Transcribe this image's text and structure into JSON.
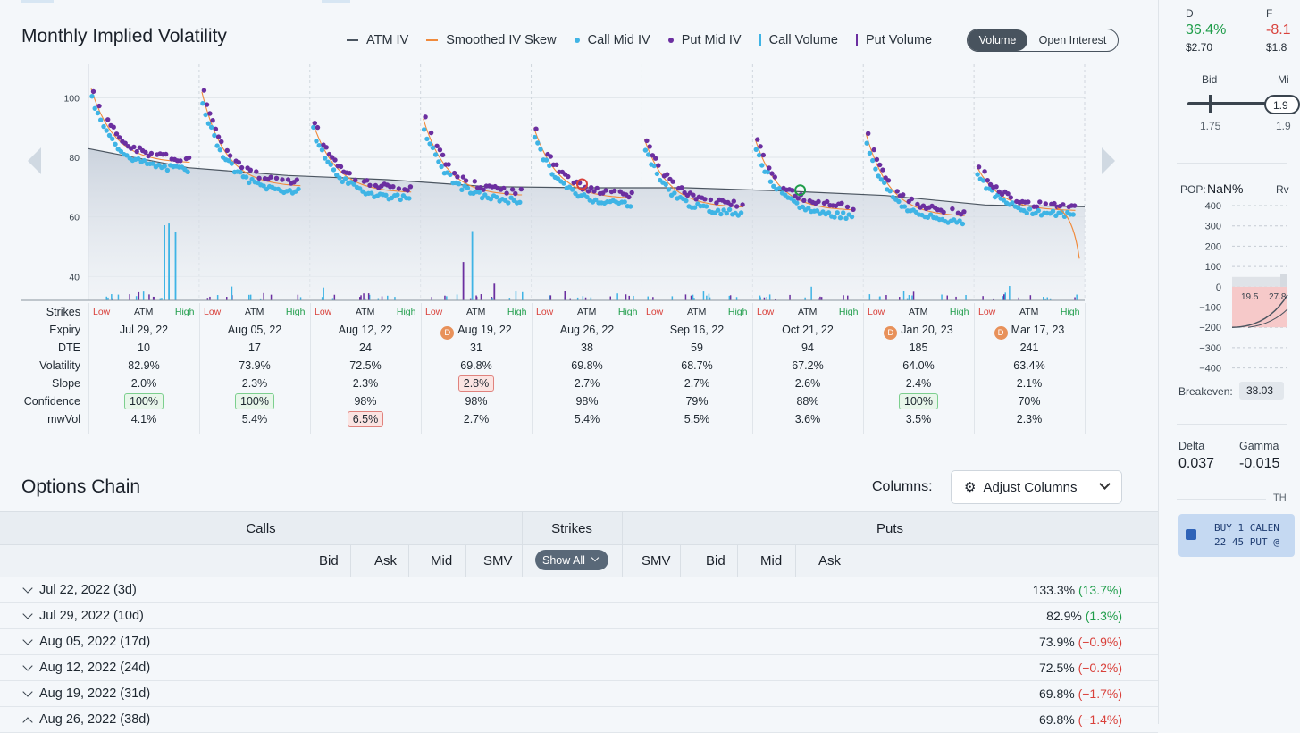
{
  "iv_title": "Monthly Implied Volatility",
  "legend": [
    {
      "label": "ATM IV",
      "kind": "line",
      "color": "#4b5560"
    },
    {
      "label": "Smoothed IV Skew",
      "kind": "line",
      "color": "#f08a3c"
    },
    {
      "label": "Call Mid IV",
      "kind": "dot",
      "color": "#3fb4e5"
    },
    {
      "label": "Put Mid IV",
      "kind": "dot",
      "color": "#6b2fa0"
    },
    {
      "label": "Call Volume",
      "kind": "bar",
      "color": "#3fb4e5"
    },
    {
      "label": "Put Volume",
      "kind": "bar",
      "color": "#6b2fa0"
    }
  ],
  "toggle": {
    "volume": "Volume",
    "open_interest": "Open Interest",
    "selected": "Volume"
  },
  "chart_data": {
    "type": "scatter",
    "y_ticks": [
      40,
      60,
      80,
      100
    ],
    "ylim": [
      32,
      110
    ],
    "atm_iv_curve": [
      82.9,
      76.5,
      73.9,
      72.5,
      70.2,
      69.8,
      69.8,
      68.7,
      67.2,
      64.0,
      63.4
    ],
    "expiries": [
      {
        "iv_start": 103,
        "iv_end": 78,
        "call_offset": -2.5
      },
      {
        "iv_start": 102,
        "iv_end": 70,
        "call_offset": -2
      },
      {
        "iv_start": 92,
        "iv_end": 68,
        "call_offset": -2
      },
      {
        "iv_start": 93,
        "iv_end": 67,
        "call_offset": -2
      },
      {
        "iv_start": 90,
        "iv_end": 66,
        "call_offset": -2
      },
      {
        "iv_start": 86,
        "iv_end": 63,
        "call_offset": -2
      },
      {
        "iv_start": 86,
        "iv_end": 62,
        "call_offset": -2
      },
      {
        "iv_start": 88,
        "iv_end": 60,
        "call_offset": -2
      },
      {
        "iv_start": 77,
        "iv_end": 62,
        "call_offset": -1.5
      }
    ],
    "volume_spikes": [
      {
        "expiry": 0,
        "pos": 0.68,
        "height": 0.9,
        "kind": "call"
      },
      {
        "expiry": 0,
        "pos": 0.72,
        "height": 0.92,
        "kind": "call"
      },
      {
        "expiry": 0,
        "pos": 0.78,
        "height": 0.82,
        "kind": "call"
      },
      {
        "expiry": 3,
        "pos": 0.38,
        "height": 0.46,
        "kind": "put"
      },
      {
        "expiry": 3,
        "pos": 0.46,
        "height": 0.83,
        "kind": "call"
      },
      {
        "expiry": 3,
        "pos": 0.66,
        "height": 0.2,
        "kind": "put"
      }
    ],
    "markers": [
      {
        "expiry": 4,
        "pos": 0.46,
        "iv": 71,
        "color": "#d9413b"
      },
      {
        "expiry": 6,
        "pos": 0.43,
        "iv": 69,
        "color": "#1f9d4a"
      }
    ],
    "extrapolated_tail": {
      "from_iv": 63,
      "to_iv": 46
    }
  },
  "stats": {
    "row_labels": [
      "Strikes",
      "Expiry",
      "DTE",
      "Volatility",
      "Slope",
      "Confidence",
      "mwVol"
    ],
    "strike_labels": {
      "low": "Low",
      "atm": "ATM",
      "high": "High"
    },
    "columns": [
      {
        "expiry": "Jul 29, 22",
        "dte": "10",
        "vol": "82.9%",
        "slope": "2.0%",
        "conf": "100%",
        "mw": "4.1%",
        "div": false,
        "slope_hl": false,
        "conf_hl": true,
        "mw_hl": false
      },
      {
        "expiry": "Aug 05, 22",
        "dte": "17",
        "vol": "73.9%",
        "slope": "2.3%",
        "conf": "100%",
        "mw": "5.4%",
        "div": false,
        "slope_hl": false,
        "conf_hl": true,
        "mw_hl": false
      },
      {
        "expiry": "Aug 12, 22",
        "dte": "24",
        "vol": "72.5%",
        "slope": "2.3%",
        "conf": "98%",
        "mw": "6.5%",
        "div": false,
        "slope_hl": false,
        "conf_hl": false,
        "mw_hl": true
      },
      {
        "expiry": "Aug 19, 22",
        "dte": "31",
        "vol": "69.8%",
        "slope": "2.8%",
        "conf": "98%",
        "mw": "2.7%",
        "div": true,
        "slope_hl": true,
        "conf_hl": false,
        "mw_hl": false
      },
      {
        "expiry": "Aug 26, 22",
        "dte": "38",
        "vol": "69.8%",
        "slope": "2.7%",
        "conf": "98%",
        "mw": "5.4%",
        "div": false,
        "slope_hl": false,
        "conf_hl": false,
        "mw_hl": false
      },
      {
        "expiry": "Sep 16, 22",
        "dte": "59",
        "vol": "68.7%",
        "slope": "2.7%",
        "conf": "79%",
        "mw": "5.5%",
        "div": false,
        "slope_hl": false,
        "conf_hl": false,
        "mw_hl": false
      },
      {
        "expiry": "Oct 21, 22",
        "dte": "94",
        "vol": "67.2%",
        "slope": "2.6%",
        "conf": "88%",
        "mw": "3.6%",
        "div": false,
        "slope_hl": false,
        "conf_hl": false,
        "mw_hl": false
      },
      {
        "expiry": "Jan 20, 23",
        "dte": "185",
        "vol": "64.0%",
        "slope": "2.4%",
        "conf": "100%",
        "mw": "3.5%",
        "div": true,
        "slope_hl": false,
        "conf_hl": true,
        "mw_hl": false
      },
      {
        "expiry": "Mar 17, 23",
        "dte": "241",
        "vol": "63.4%",
        "slope": "2.1%",
        "conf": "70%",
        "mw": "2.3%",
        "div": true,
        "slope_hl": false,
        "conf_hl": false,
        "mw_hl": false
      }
    ],
    "div_badge": "D"
  },
  "options_chain": {
    "title": "Options Chain",
    "columns_label": "Columns:",
    "adjust_columns": "Adjust Columns",
    "headers": {
      "calls": "Calls",
      "strikes": "Strikes",
      "puts": "Puts"
    },
    "call_cols": [
      "Bid",
      "Ask",
      "Mid",
      "SMV"
    ],
    "put_cols": [
      "SMV",
      "Bid",
      "Mid",
      "Ask"
    ],
    "show_all": "Show All",
    "rows": [
      {
        "label": "Jul 22, 2022 (3d)",
        "iv": "133.3%",
        "chg": "(13.7%)",
        "dir": "pos",
        "open": false
      },
      {
        "label": "Jul 29, 2022 (10d)",
        "iv": "82.9%",
        "chg": "(1.3%)",
        "dir": "pos",
        "open": false
      },
      {
        "label": "Aug 05, 2022 (17d)",
        "iv": "73.9%",
        "chg": "(−0.9%)",
        "dir": "neg",
        "open": false
      },
      {
        "label": "Aug 12, 2022 (24d)",
        "iv": "72.5%",
        "chg": "(−0.2%)",
        "dir": "neg",
        "open": false
      },
      {
        "label": "Aug 19, 2022 (31d)",
        "iv": "69.8%",
        "chg": "(−1.7%)",
        "dir": "neg",
        "open": false
      },
      {
        "label": "Aug 26, 2022 (38d)",
        "iv": "69.8%",
        "chg": "(−1.4%)",
        "dir": "neg",
        "open": true
      }
    ]
  },
  "right_panel": {
    "col_d_label": "D",
    "col_d_value": "36.4%",
    "col_d_price": "$2.70",
    "col_f_label": "F",
    "col_f_value": "-8.1",
    "col_f_price": "$1.8",
    "bid_label": "Bid",
    "mid_label": "Mi",
    "slider_value": "1.9",
    "slider_low": "1.75",
    "slider_right": "1.9",
    "pop_label": "POP:",
    "pop_value": "NaN%",
    "rv_label": "Rv",
    "pl_ticks": [
      "400",
      "300",
      "200",
      "100",
      "0",
      "−100",
      "−200",
      "−300",
      "−400"
    ],
    "pl_x_ticks": [
      "19.5",
      "27.8"
    ],
    "breakeven_label": "Breakeven:",
    "breakeven_value": "38.03",
    "delta_label": "Delta",
    "delta_value": "0.037",
    "gamma_label": "Gamma",
    "gamma_value": "-0.015",
    "th_label": "TH",
    "order_line1": "BUY 1 CALEN",
    "order_line2": "22 45 PUT @",
    "colors": {
      "positive": "#1f9d4a",
      "negative": "#d9413b",
      "order_bg": "#c5d9f2"
    }
  }
}
